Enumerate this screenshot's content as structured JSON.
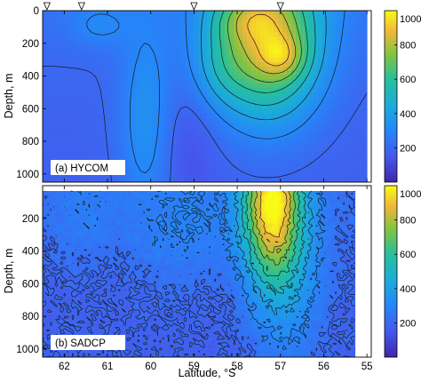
{
  "chart_data": [
    {
      "type": "heatmap",
      "panel_label": "(a) HYCOM",
      "ylabel": "Depth, m",
      "xlabel": "",
      "x_unit": "degrees S",
      "xlim": [
        62.5,
        54.9
      ],
      "ylim": [
        1050,
        0
      ],
      "x_ticks": [
        62,
        61,
        60,
        59,
        58,
        57,
        56,
        55
      ],
      "y_ticks": [
        0,
        200,
        400,
        600,
        800,
        1000
      ],
      "y_tick_labels": [
        "0",
        "200",
        "400",
        "600",
        "800",
        "1000"
      ],
      "colorbar": {
        "min": 0,
        "max": 1000,
        "ticks": [
          200,
          400,
          600,
          800
        ],
        "top_label": "1000"
      },
      "markers_lat": [
        62.4,
        61.6,
        59.0,
        57.0
      ],
      "bottom_edge_lat": 55.1,
      "contour_interval": 100,
      "maxima": [
        {
          "lat": 56.95,
          "depth": 280,
          "value": 1000
        },
        {
          "lat": 57.6,
          "depth": 120,
          "value": 930
        }
      ]
    },
    {
      "type": "heatmap",
      "panel_label": "(b) SADCP",
      "ylabel": "Depth, m",
      "xlabel": "Latitude, °S",
      "x_unit": "degrees S",
      "xlim": [
        62.5,
        54.9
      ],
      "ylim": [
        1050,
        0
      ],
      "x_ticks": [
        62,
        61,
        60,
        59,
        58,
        57,
        56,
        55
      ],
      "x_tick_labels": [
        "62",
        "61",
        "60",
        "59",
        "58",
        "57",
        "56",
        "55"
      ],
      "y_ticks": [
        200,
        400,
        600,
        800,
        1000
      ],
      "y_tick_labels": [
        "200",
        "400",
        "600",
        "800",
        "1000"
      ],
      "colorbar": {
        "min": 0,
        "max": 1000,
        "ticks": [
          200,
          400,
          600,
          800
        ],
        "top_label": "1000"
      },
      "data_start_depth": 40,
      "bottom_edge_lat": 55.3,
      "maxima": [
        {
          "lat": 57.3,
          "depth": 80,
          "value": 1000
        }
      ]
    }
  ]
}
